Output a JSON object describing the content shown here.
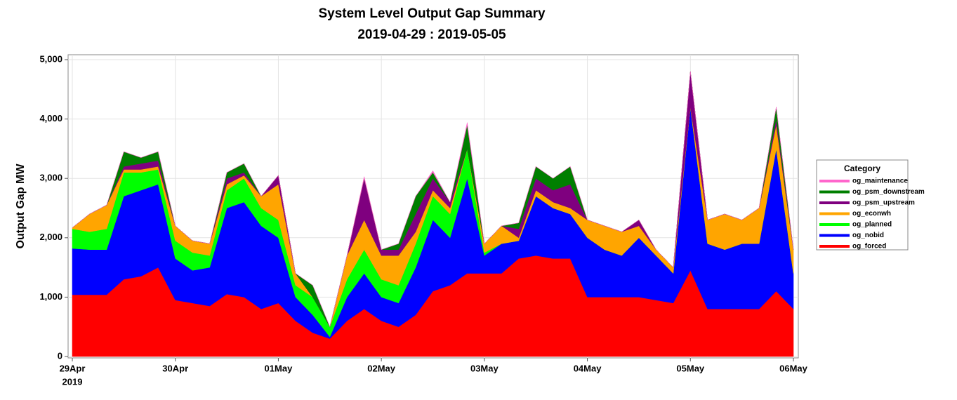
{
  "chart_data": {
    "type": "stacked-area",
    "title": "System Level Output Gap Summary",
    "subtitle": "2019-04-29 : 2019-05-05",
    "y_label": "Output Gap MW",
    "legend_title": "Category",
    "legend_position": "right",
    "grid": true,
    "xlim": [
      0,
      7
    ],
    "xticks": [
      {
        "value": 0,
        "label": "29Apr"
      },
      {
        "value": 1,
        "label": "30Apr"
      },
      {
        "value": 2,
        "label": "01May"
      },
      {
        "value": 3,
        "label": "02May"
      },
      {
        "value": 4,
        "label": "03May"
      },
      {
        "value": 5,
        "label": "04May"
      },
      {
        "value": 6,
        "label": "05May"
      },
      {
        "value": 7,
        "label": "06May"
      }
    ],
    "xtick_year": "2019",
    "ylim": [
      0,
      5000
    ],
    "yticks": [
      0,
      {
        "value": 1000,
        "label": "1,000"
      },
      {
        "value": 2000,
        "label": "2,000"
      },
      {
        "value": 3000,
        "label": "3,000"
      },
      {
        "value": 4000,
        "label": "4,000"
      },
      {
        "value": 5000,
        "label": "5,000"
      }
    ],
    "x": [
      0,
      0.1667,
      0.3333,
      0.5,
      0.6667,
      0.8333,
      1,
      1.1667,
      1.3333,
      1.5,
      1.6667,
      1.8333,
      2,
      2.1667,
      2.3333,
      2.5,
      2.6667,
      2.8333,
      3,
      3.1667,
      3.3333,
      3.5,
      3.6667,
      3.8333,
      4,
      4.1667,
      4.3333,
      4.5,
      4.6667,
      4.8333,
      5,
      5.1667,
      5.3333,
      5.5,
      5.6667,
      5.8333,
      6,
      6.1667,
      6.3333,
      6.5,
      6.6667,
      6.8333,
      7
    ],
    "series": [
      {
        "name": "og_forced",
        "color": "#ff0000",
        "values": [
          1040,
          1040,
          1040,
          1300,
          1350,
          1500,
          950,
          900,
          850,
          1050,
          1000,
          800,
          900,
          600,
          400,
          300,
          600,
          800,
          600,
          500,
          700,
          1100,
          1200,
          1400,
          1400,
          1400,
          1650,
          1700,
          1650,
          1650,
          1000,
          1000,
          1000,
          1000,
          950,
          900,
          1450,
          800,
          800,
          800,
          800,
          1100,
          800
        ]
      },
      {
        "name": "og_nobid",
        "color": "#0000ff",
        "values": [
          780,
          760,
          760,
          1400,
          1450,
          1400,
          700,
          550,
          650,
          1450,
          1600,
          1400,
          1100,
          400,
          300,
          30,
          400,
          600,
          400,
          400,
          800,
          1200,
          800,
          1600,
          300,
          500,
          300,
          1000,
          850,
          750,
          1000,
          800,
          700,
          1000,
          750,
          500,
          2750,
          1100,
          1000,
          1100,
          1100,
          2400,
          600
        ]
      },
      {
        "name": "og_planned",
        "color": "#00ff00",
        "values": [
          330,
          300,
          350,
          400,
          300,
          250,
          300,
          300,
          200,
          300,
          400,
          300,
          300,
          200,
          300,
          170,
          300,
          400,
          300,
          300,
          400,
          400,
          400,
          500,
          50,
          0,
          0,
          0,
          0,
          0,
          0,
          0,
          0,
          0,
          0,
          0,
          0,
          0,
          0,
          0,
          0,
          0,
          0
        ]
      },
      {
        "name": "og_econwh",
        "color": "#ffa500",
        "values": [
          20,
          300,
          400,
          50,
          50,
          50,
          250,
          200,
          200,
          100,
          50,
          200,
          600,
          200,
          0,
          0,
          400,
          500,
          400,
          500,
          200,
          100,
          100,
          0,
          150,
          300,
          50,
          100,
          100,
          100,
          300,
          400,
          400,
          200,
          100,
          100,
          0,
          400,
          600,
          400,
          600,
          400,
          400
        ]
      },
      {
        "name": "og_psm_upstream",
        "color": "#7f007f",
        "values": [
          0,
          0,
          0,
          50,
          100,
          100,
          0,
          0,
          0,
          100,
          50,
          0,
          150,
          0,
          0,
          0,
          0,
          700,
          100,
          100,
          300,
          200,
          100,
          0,
          0,
          0,
          150,
          200,
          200,
          400,
          0,
          0,
          0,
          100,
          0,
          0,
          600,
          0,
          0,
          0,
          0,
          100,
          0
        ]
      },
      {
        "name": "og_psm_downstream",
        "color": "#007f00",
        "values": [
          0,
          0,
          0,
          250,
          100,
          150,
          0,
          0,
          0,
          100,
          150,
          0,
          0,
          0,
          200,
          0,
          0,
          0,
          0,
          100,
          300,
          100,
          0,
          400,
          0,
          0,
          100,
          200,
          200,
          300,
          0,
          0,
          0,
          0,
          0,
          0,
          0,
          0,
          0,
          0,
          0,
          200,
          0
        ]
      },
      {
        "name": "og_maintenance",
        "color": "#ff66cc",
        "values": [
          0,
          0,
          0,
          0,
          0,
          0,
          0,
          0,
          0,
          0,
          0,
          0,
          0,
          0,
          0,
          0,
          0,
          30,
          0,
          0,
          0,
          30,
          0,
          40,
          0,
          0,
          0,
          0,
          0,
          0,
          0,
          0,
          0,
          0,
          0,
          0,
          0,
          0,
          0,
          0,
          0,
          0,
          0
        ]
      }
    ]
  }
}
